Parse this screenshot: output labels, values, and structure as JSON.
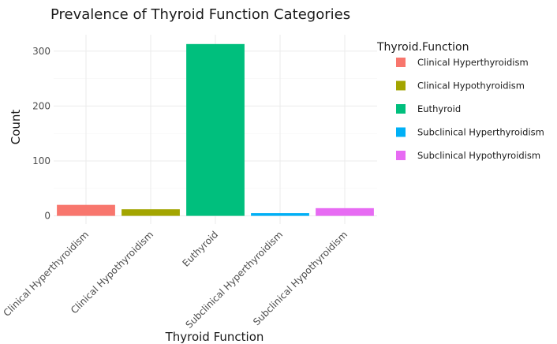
{
  "chart_data": {
    "type": "bar",
    "title": "Prevalence of Thyroid Function Categories",
    "xlabel": "Thyroid Function",
    "ylabel": "Count",
    "categories": [
      "Clinical Hyperthyroidism",
      "Clinical Hypothyroidism",
      "Euthyroid",
      "Subclinical Hyperthyroidism",
      "Subclinical Hypothyroidism"
    ],
    "values": [
      20,
      12,
      313,
      5,
      14
    ],
    "colors": [
      "#F8766D",
      "#A3A500",
      "#00BF7D",
      "#00B0F6",
      "#E76BF3"
    ],
    "ylim": [
      0,
      330
    ],
    "yticks": [
      0,
      100,
      200,
      300
    ],
    "grid": true,
    "legend": {
      "title": "Thyroid.Function",
      "placement": "right",
      "entries": [
        "Clinical Hyperthyroidism",
        "Clinical Hypothyroidism",
        "Euthyroid",
        "Subclinical Hyperthyroidism",
        "Subclinical Hypothyroidism"
      ]
    }
  }
}
